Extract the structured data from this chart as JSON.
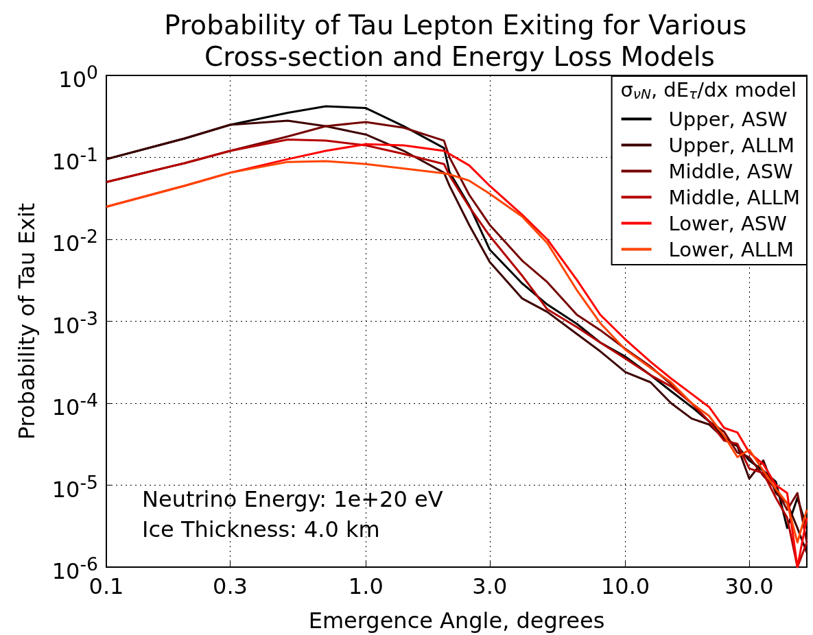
{
  "chart_data": {
    "type": "line",
    "title": "Probability of Tau Lepton Exiting for Various Cross-section and Energy Loss Models",
    "xlabel": "Emergence Angle, degrees",
    "ylabel": "Probability of Tau Exit",
    "legend_title": "σ$_{νN}$, dE$_{τ}$/dx model",
    "annotations": [
      "Neutrino Energy: 1e+20 eV",
      "Ice Thickness: 4.0 km"
    ],
    "log": "xy",
    "grid": true,
    "legend": "top right",
    "line_style": "solid",
    "xlim": [
      0.1,
      50
    ],
    "ylim": [
      1e-06,
      1
    ],
    "xticks": [
      0.1,
      0.3,
      {
        "value": 1,
        "label": "1.0"
      },
      {
        "value": 3,
        "label": "3.0"
      },
      {
        "value": 10,
        "label": "10.0"
      },
      {
        "value": 30,
        "label": "30.0"
      }
    ],
    "yticks": [
      {
        "value": 1e-06,
        "label": "10$^{-6}$"
      },
      {
        "value": 1e-05,
        "label": "10$^{-5}$"
      },
      {
        "value": 0.0001,
        "label": "10$^{-4}$"
      },
      {
        "value": 0.001,
        "label": "10$^{-3}$"
      },
      {
        "value": 0.01,
        "label": "10$^{-2}$"
      },
      {
        "value": 0.1,
        "label": "10$^{-1}$"
      },
      {
        "value": 1,
        "label": "10$^{0}$"
      }
    ],
    "x": [
      0.1,
      0.2,
      0.3,
      0.5,
      0.7,
      1.0,
      1.4,
      2.0,
      2.1,
      2.5,
      3,
      4,
      5,
      6.5,
      8,
      10,
      12.5,
      15,
      18,
      21,
      24,
      27,
      30,
      34,
      38,
      42,
      46,
      50
    ],
    "series": [
      {
        "name": "Upper, ASW",
        "color": "#000000",
        "values": [
          0.095,
          0.17,
          0.25,
          0.35,
          0.42,
          0.4,
          0.24,
          0.13,
          0.066,
          0.026,
          0.0075,
          0.0029,
          0.0016,
          0.00093,
          0.00055,
          0.00037,
          0.00022,
          0.00014,
          9e-05,
          6e-05,
          3.8e-05,
          3e-05,
          2e-05,
          1.5e-05,
          1.1e-05,
          3e-06,
          7e-06,
          3e-06
        ]
      },
      {
        "name": "Upper, ALLM",
        "color": "#3d0000",
        "values": [
          0.095,
          0.17,
          0.25,
          0.28,
          0.24,
          0.19,
          0.12,
          0.065,
          0.045,
          0.015,
          0.0053,
          0.0019,
          0.0013,
          0.0007,
          0.00043,
          0.00024,
          0.00018,
          0.0001,
          6.5e-05,
          5.5e-05,
          3.7e-05,
          3e-05,
          1.2e-05,
          2e-05,
          8e-06,
          6e-06,
          3e-06,
          1.5e-06
        ]
      },
      {
        "name": "Middle, ASW",
        "color": "#750000",
        "values": [
          0.05,
          0.085,
          0.12,
          0.18,
          0.24,
          0.27,
          0.23,
          0.16,
          0.1,
          0.035,
          0.015,
          0.0055,
          0.003,
          0.0012,
          0.00078,
          0.00046,
          0.00028,
          0.00017,
          0.0001,
          6e-05,
          4.5e-05,
          2.5e-05,
          2.2e-05,
          1.3e-05,
          9e-06,
          5e-06,
          8e-06,
          2e-06
        ]
      },
      {
        "name": "Middle, ALLM",
        "color": "#b30000",
        "values": [
          0.05,
          0.085,
          0.12,
          0.165,
          0.16,
          0.14,
          0.11,
          0.083,
          0.06,
          0.025,
          0.011,
          0.0036,
          0.0014,
          0.00085,
          0.00055,
          0.00035,
          0.00022,
          0.00016,
          0.0001,
          6e-05,
          3.5e-05,
          3.2e-05,
          1.6e-05,
          1.4e-05,
          7e-06,
          4e-06,
          1e-06,
          2e-06
        ]
      },
      {
        "name": "Lower, ASW",
        "color": "#ff0000",
        "values": [
          0.025,
          0.045,
          0.065,
          0.095,
          0.12,
          0.145,
          0.14,
          0.12,
          0.11,
          0.08,
          0.045,
          0.02,
          0.01,
          0.0032,
          0.0012,
          0.0006,
          0.00032,
          0.0002,
          0.00013,
          9e-05,
          5e-05,
          4.4e-05,
          2.5e-05,
          1.8e-05,
          1e-05,
          8e-06,
          1e-06,
          4e-06
        ]
      },
      {
        "name": "Lower, ALLM",
        "color": "#ff4400",
        "values": [
          0.025,
          0.045,
          0.065,
          0.088,
          0.09,
          0.083,
          0.073,
          0.064,
          0.062,
          0.052,
          0.036,
          0.019,
          0.009,
          0.0024,
          0.00095,
          0.00045,
          0.00027,
          0.00018,
          0.0001,
          7e-05,
          4e-05,
          2.2e-05,
          2.7e-05,
          1.5e-05,
          9e-06,
          6e-06,
          2e-06,
          5e-06
        ]
      }
    ]
  }
}
